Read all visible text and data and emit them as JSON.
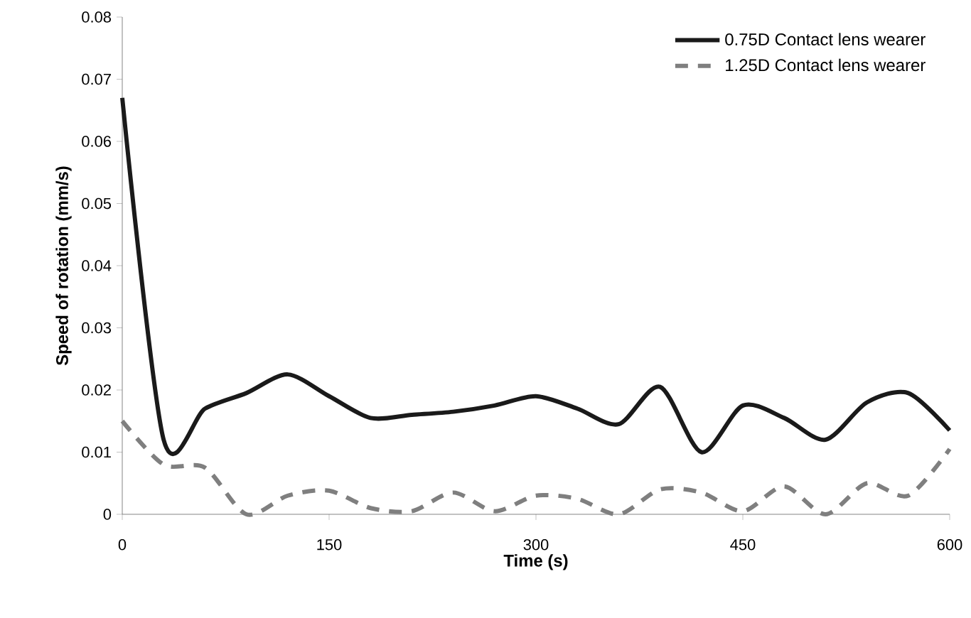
{
  "chart_data": {
    "type": "line",
    "xlabel": "Time (s)",
    "ylabel": "Speed  of  rotation  (mm/s)",
    "xlim": [
      0,
      600
    ],
    "xticks": [
      0,
      150,
      300,
      450,
      600
    ],
    "ylim": [
      0,
      0.08
    ],
    "yticks": [
      {
        "value": 0,
        "label": "0"
      },
      {
        "value": 0.01,
        "label": "0.01"
      },
      {
        "value": 0.02,
        "label": "0.02"
      },
      {
        "value": 0.03,
        "label": "0.03"
      },
      {
        "value": 0.04,
        "label": "0.04"
      },
      {
        "value": 0.05,
        "label": "0.05"
      },
      {
        "value": 0.06,
        "label": "0.06"
      },
      {
        "value": 0.07,
        "label": "0.07"
      },
      {
        "value": 0.08,
        "label": "0.08"
      }
    ],
    "x": [
      0,
      30,
      60,
      90,
      120,
      150,
      180,
      210,
      240,
      270,
      300,
      330,
      360,
      390,
      420,
      450,
      480,
      510,
      540,
      570,
      600
    ],
    "legend": "top right",
    "grid": false,
    "series": [
      {
        "name": "0.75D Contact lens wearer",
        "color": "#1a1a1a",
        "line_style": "solid",
        "values": [
          0.067,
          0.012,
          0.017,
          0.0195,
          0.0225,
          0.019,
          0.0155,
          0.016,
          0.0165,
          0.0175,
          0.019,
          0.017,
          0.0145,
          0.0205,
          0.01,
          0.0175,
          0.0155,
          0.012,
          0.018,
          0.0195,
          0.0135
        ]
      },
      {
        "name": "1.25D Contact lens wearer",
        "color": "#7f7f7f",
        "line_style": "dashed",
        "values": [
          0.015,
          0.008,
          0.0075,
          0,
          0.003,
          0.0038,
          0.001,
          0.0005,
          0.0035,
          0.0005,
          0.003,
          0.0025,
          0,
          0.004,
          0.0035,
          0.0005,
          0.0045,
          0,
          0.005,
          0.003,
          0.0105
        ]
      }
    ]
  }
}
